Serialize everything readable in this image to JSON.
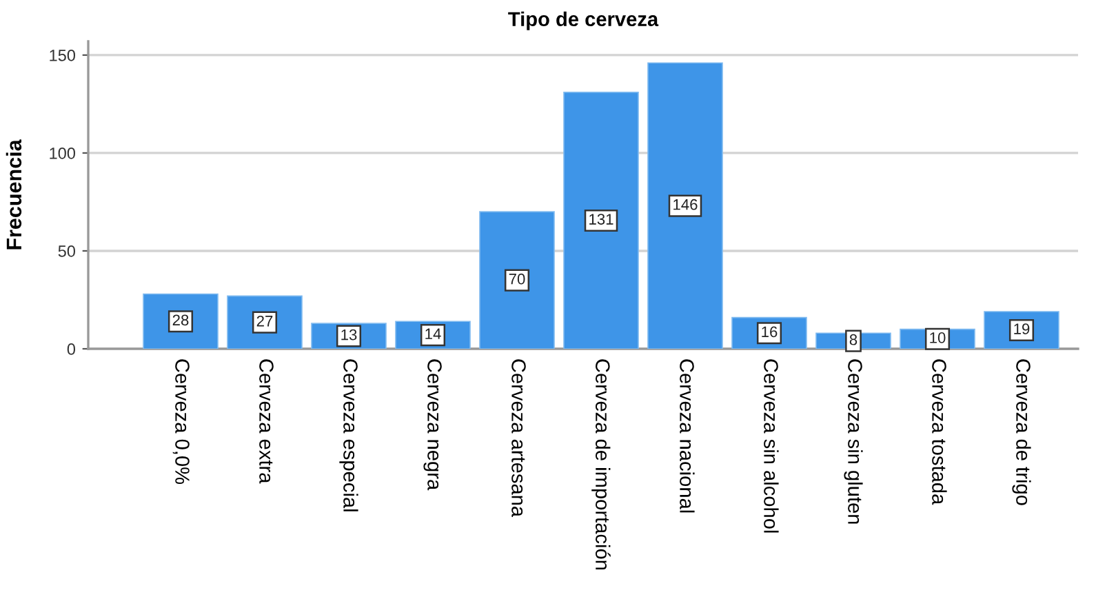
{
  "chart_data": {
    "type": "bar",
    "title": "Tipo de cerveza",
    "ylabel": "Frecuencia",
    "categories": [
      "Cerveza 0,0%",
      "Cerveza extra",
      "Cerveza especial",
      "Cerveza negra",
      "Cerveza artesana",
      "Cerveza de importación",
      "Cerveza nacional",
      "Cerveza sin alcohol",
      "Cerveza sin gluten",
      "Cerveza tostada",
      "Cerveza de trigo"
    ],
    "values": [
      28,
      27,
      13,
      14,
      70,
      131,
      146,
      16,
      8,
      10,
      19
    ],
    "color": "#3e95e8",
    "ylim": [
      0,
      157
    ],
    "yticks": [
      0,
      50,
      100,
      150
    ],
    "grid": "y",
    "data_labels": true
  }
}
